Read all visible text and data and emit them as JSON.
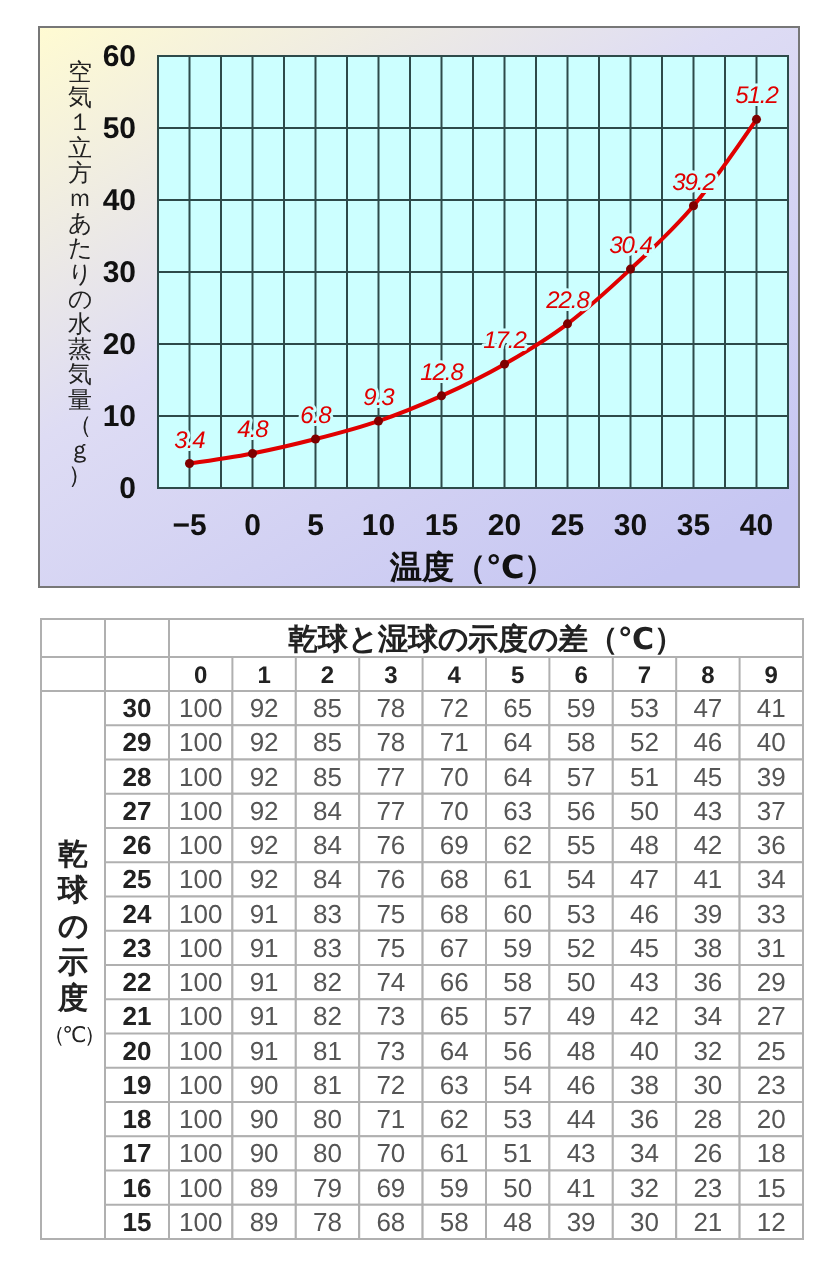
{
  "chart_data": [
    {
      "type": "line",
      "xlabel": "温度（℃）",
      "ylabel": "空気１立方ｍあたりの水蒸気量（ｇ）",
      "x": [
        -5,
        0,
        5,
        10,
        15,
        20,
        25,
        30,
        35,
        40
      ],
      "series": [
        {
          "color": "#e00000",
          "values": [
            3.4,
            4.8,
            6.8,
            9.3,
            12.8,
            17.2,
            22.8,
            30.4,
            39.2,
            51.2
          ]
        }
      ],
      "xlim": [
        -7.5,
        42.5
      ],
      "xticks": [
        -5,
        {
          "value": -2.5,
          "label": null
        },
        0,
        {
          "value": 2.5,
          "label": null
        },
        5,
        {
          "value": 7.5,
          "label": null
        },
        10,
        {
          "value": 12.5,
          "label": null
        },
        15,
        {
          "value": 17.5,
          "label": null
        },
        20,
        {
          "value": 22.5,
          "label": null
        },
        25,
        {
          "value": 27.5,
          "label": null
        },
        30,
        {
          "value": 32.5,
          "label": null
        },
        35,
        {
          "value": 37.5,
          "label": null
        },
        40
      ],
      "ylim": [
        0,
        60
      ],
      "yticks": [
        0,
        10,
        20,
        30,
        40,
        50,
        60
      ],
      "grid": true,
      "marker": "circle",
      "line_style": "solid",
      "data_labels": true
    },
    {
      "type": "heatmap",
      "title": "乾球と湿球の示度の差（℃）",
      "ylabel": "乾球の示度（℃）",
      "categories": [
        "0",
        "1",
        "2",
        "3",
        "4",
        "5",
        "6",
        "7",
        "8",
        "9"
      ],
      "y_categories": [
        "30",
        "29",
        "28",
        "27",
        "26",
        "25",
        "24",
        "23",
        "22",
        "21",
        "20",
        "19",
        "18",
        "17",
        "16",
        "15"
      ],
      "cells": [
        [
          100,
          92,
          85,
          78,
          72,
          65,
          59,
          53,
          47,
          41
        ],
        [
          100,
          92,
          85,
          78,
          71,
          64,
          58,
          52,
          46,
          40
        ],
        [
          100,
          92,
          85,
          77,
          70,
          64,
          57,
          51,
          45,
          39
        ],
        [
          100,
          92,
          84,
          77,
          70,
          63,
          56,
          50,
          43,
          37
        ],
        [
          100,
          92,
          84,
          76,
          69,
          62,
          55,
          48,
          42,
          36
        ],
        [
          100,
          92,
          84,
          76,
          68,
          61,
          54,
          47,
          41,
          34
        ],
        [
          100,
          91,
          83,
          75,
          68,
          60,
          53,
          46,
          39,
          33
        ],
        [
          100,
          91,
          83,
          75,
          67,
          59,
          52,
          45,
          38,
          31
        ],
        [
          100,
          91,
          82,
          74,
          66,
          58,
          50,
          43,
          36,
          29
        ],
        [
          100,
          91,
          82,
          73,
          65,
          57,
          49,
          42,
          34,
          27
        ],
        [
          100,
          91,
          81,
          73,
          64,
          56,
          48,
          40,
          32,
          25
        ],
        [
          100,
          90,
          81,
          72,
          63,
          54,
          46,
          38,
          30,
          23
        ],
        [
          100,
          90,
          80,
          71,
          62,
          53,
          44,
          36,
          28,
          20
        ],
        [
          100,
          90,
          80,
          70,
          61,
          51,
          43,
          34,
          26,
          18
        ],
        [
          100,
          89,
          79,
          69,
          59,
          50,
          41,
          32,
          23,
          15
        ],
        [
          100,
          89,
          78,
          68,
          58,
          48,
          39,
          30,
          21,
          12
        ]
      ],
      "data_labels": true
    }
  ]
}
